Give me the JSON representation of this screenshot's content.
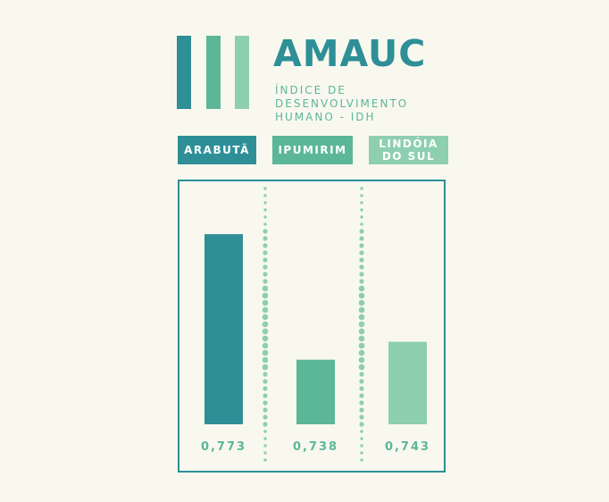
{
  "header": {
    "title": "AMAUC",
    "subtitle_lines": [
      "ÍNDICE DE",
      "DESENVOLVIMENTO",
      "HUMANO - IDH"
    ]
  },
  "colors": {
    "background": "#f9f8ef",
    "dark_teal": "#2e8f97",
    "mid_green": "#5bb797",
    "light_green": "#8dcfae",
    "title": "#2e8f97",
    "subtitle": "#5bb797",
    "value_text": "#5bb797",
    "dots": "#8dcfae"
  },
  "chart_data": {
    "type": "bar",
    "categories": [
      "ARABUTÃ",
      "IPUMIRIM",
      "LINDÓIA DO SUL"
    ],
    "category_lines": [
      [
        "ARABUTÃ"
      ],
      [
        "IPUMIRIM"
      ],
      [
        "LINDÓIA",
        "DO SUL"
      ]
    ],
    "values": [
      0.773,
      0.738,
      0.743
    ],
    "value_labels": [
      "0,773",
      "0,738",
      "0,743"
    ],
    "title": "",
    "xlabel": "",
    "ylabel": "",
    "ylim": [
      0.72,
      0.78
    ],
    "grid": false,
    "legend": "none"
  }
}
